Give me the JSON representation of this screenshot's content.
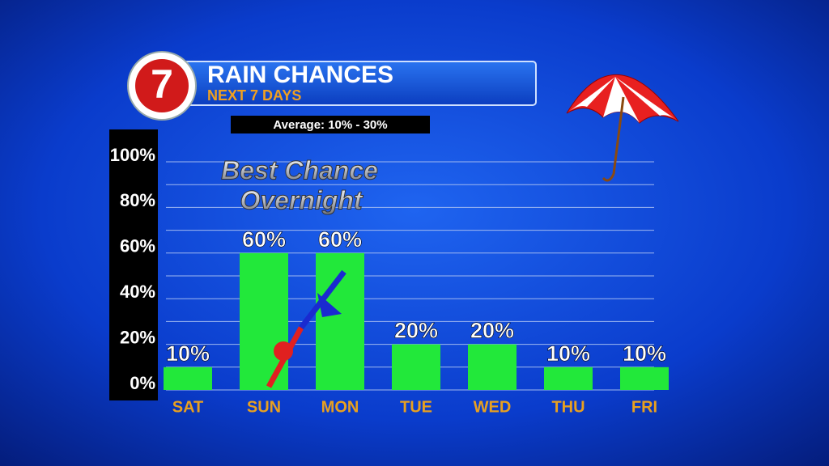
{
  "logo": "7",
  "chart_data": {
    "type": "bar",
    "title": "RAIN CHANCES",
    "subtitle": "NEXT 7 DAYS",
    "annotations": [
      "Average: 10% - 30%",
      "Best Chance",
      "Overnight"
    ],
    "categories": [
      "SAT",
      "SUN",
      "MON",
      "TUE",
      "WED",
      "THU",
      "FRI"
    ],
    "values": [
      10,
      60,
      60,
      20,
      20,
      10,
      10
    ],
    "value_labels": [
      "10%",
      "60%",
      "60%",
      "20%",
      "20%",
      "10%",
      "10%"
    ],
    "color": "#22e83a",
    "ylim": [
      0,
      100
    ],
    "yticks": [
      {
        "value": 0,
        "label": "0%"
      },
      {
        "value": 20,
        "label": "20%"
      },
      {
        "value": 40,
        "label": "40%"
      },
      {
        "value": 60,
        "label": "60%"
      },
      {
        "value": 80,
        "label": "80%"
      },
      {
        "value": 100,
        "label": "100%"
      }
    ],
    "minor_yticks": [
      10,
      30,
      50,
      70,
      90
    ],
    "grid": true
  }
}
